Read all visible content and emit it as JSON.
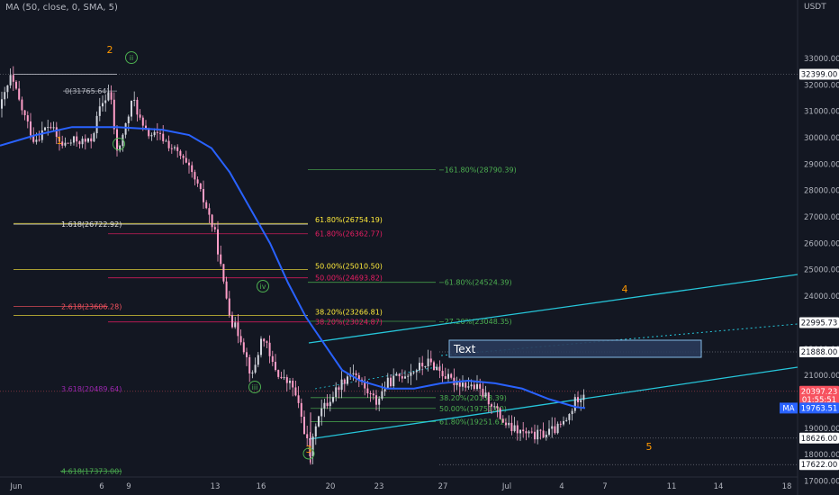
{
  "indicator_label": "MA (50, close, 0, SMA, 5)",
  "currency": "USDT",
  "chart_data": {
    "type": "candlestick",
    "y_ticks": [
      "33000.00",
      "32000.00",
      "31000.00",
      "30000.00",
      "29000.00",
      "28000.00",
      "27000.00",
      "26000.00",
      "25000.00",
      "24000.00",
      "23000.00",
      "22000.00",
      "21000.00",
      "20000.00",
      "19000.00",
      "18000.00",
      "17000.00"
    ],
    "x_ticks": [
      "Jun",
      "6",
      "9",
      "13",
      "16",
      "20",
      "23",
      "27",
      "Jul",
      "4",
      "7",
      "11",
      "14",
      "18"
    ],
    "ylim": [
      16550,
      33500
    ],
    "price_tags": [
      {
        "label": "32399.00",
        "y": 32399,
        "bg": "#ffffff",
        "fg": "#131722"
      },
      {
        "label": "22995.73",
        "y": 22996,
        "bg": "#ffffff",
        "fg": "#131722"
      },
      {
        "label": "21888.00",
        "y": 21888,
        "bg": "#ffffff",
        "fg": "#131722"
      },
      {
        "label": "20397.23",
        "y": 20397,
        "bg": "#f7525f",
        "fg": "#ffffff"
      },
      {
        "label": "01:55:51",
        "y": 20090,
        "bg": "#f7525f",
        "fg": "#ffffff"
      },
      {
        "label": "19763.51",
        "y": 19763,
        "bg": "#2962ff",
        "fg": "#ffffff"
      },
      {
        "label": "18626.00",
        "y": 18626,
        "bg": "#ffffff",
        "fg": "#131722"
      },
      {
        "label": "17622.00",
        "y": 17622,
        "bg": "#ffffff",
        "fg": "#131722"
      }
    ],
    "ma_tag": "MA",
    "fib_labels": [
      {
        "text": "0(31765.64)",
        "y": 31765,
        "color": "#b2b5be",
        "side": "left"
      },
      {
        "text": "−161.80%(28790.39)",
        "y": 28790,
        "color": "#4caf50",
        "side": "mid2"
      },
      {
        "text": "1.618(26722.92)",
        "y": 26722,
        "color": "#e0e0e0",
        "side": "left"
      },
      {
        "text": "61.80%(26754.19)",
        "y": 26754,
        "color": "#ffeb3b",
        "side": "mid"
      },
      {
        "text": "61.80%(26362.77)",
        "y": 26362,
        "color": "#e91e63",
        "side": "mid"
      },
      {
        "text": "50.00%(25010.50)",
        "y": 25010,
        "color": "#ffeb3b",
        "side": "mid"
      },
      {
        "text": "50.00%(24693.82)",
        "y": 24693,
        "color": "#e91e63",
        "side": "mid"
      },
      {
        "text": "−61.80%(24524.39)",
        "y": 24524,
        "color": "#4caf50",
        "side": "mid2"
      },
      {
        "text": "2.618(23606.28)",
        "y": 23606,
        "color": "#f7525f",
        "side": "left"
      },
      {
        "text": "38.20%(23266.81)",
        "y": 23266,
        "color": "#ffeb3b",
        "side": "mid"
      },
      {
        "text": "38.20%(23024.87)",
        "y": 23024,
        "color": "#e91e63",
        "side": "mid"
      },
      {
        "text": "−27.20%(23048.35)",
        "y": 23048,
        "color": "#4caf50",
        "side": "mid2"
      },
      {
        "text": "3.618(20489.64)",
        "y": 20489,
        "color": "#9c27b0",
        "side": "left"
      },
      {
        "text": "38.20%(20158.39)",
        "y": 20158,
        "color": "#4caf50",
        "side": "mid3"
      },
      {
        "text": "50.00%(19751.00)",
        "y": 19751,
        "color": "#4caf50",
        "side": "mid3"
      },
      {
        "text": "61.80%(19251.61)",
        "y": 19251,
        "color": "#4caf50",
        "side": "mid3"
      },
      {
        "text": "4.618(17373.00)",
        "y": 17373,
        "color": "#4caf50",
        "side": "left"
      }
    ],
    "waves": [
      "1",
      "2",
      "3",
      "4",
      "5"
    ],
    "sub_waves": [
      "i",
      "ii",
      "iii",
      "iv"
    ],
    "annotation_text": "Text"
  }
}
